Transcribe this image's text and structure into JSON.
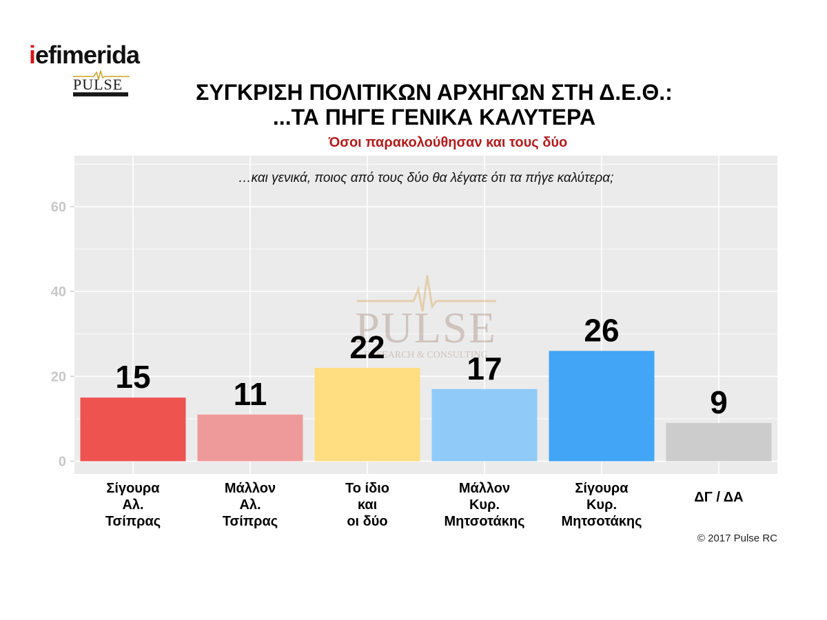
{
  "logos": {
    "iefimerida_i": "i",
    "iefimerida_rest": "efimerida",
    "pulse_text": "PULSE",
    "watermark_text": "PULSE",
    "watermark_sub": "RESEARCH & CONSULTING"
  },
  "title_line1": "ΣΥΓΚΡΙΣΗ ΠΟΛΙΤΙΚΩΝ ΑΡΧΗΓΩΝ ΣΤΗ Δ.Ε.Θ.:",
  "title_line2": "...ΤΑ ΠΗΓΕ ΓΕΝΙΚΑ ΚΑΛΥΤΕΡΑ",
  "subtitle": "Όσοι παρακολούθησαν και τους δύο",
  "question": "…και γενικά, ποιος από τους δύο θα λέγατε ότι τα πήγε καλύτερα;",
  "copyright": "© 2017 Pulse RC",
  "chart_data": {
    "type": "bar",
    "categories": [
      [
        "Σίγουρα",
        "Αλ.",
        "Τσίπρας"
      ],
      [
        "Μάλλον",
        "Αλ.",
        "Τσίπρας"
      ],
      [
        "Το ίδιο",
        "και",
        "οι δύο"
      ],
      [
        "Μάλλον",
        "Κυρ.",
        "Μητσοτάκης"
      ],
      [
        "Σίγουρα",
        "Κυρ.",
        "Μητσοτάκης"
      ],
      [
        "ΔΓ / ΔΑ"
      ]
    ],
    "values": [
      15,
      11,
      22,
      17,
      26,
      9
    ],
    "data_labels": [
      "15",
      "11",
      "22",
      "17",
      "26",
      "9"
    ],
    "colors": [
      "#ef5350",
      "#ef9a9a",
      "#ffdd80",
      "#90caf9",
      "#42a5f5",
      "#cccccc"
    ],
    "yticks": [
      0,
      20,
      40,
      60
    ],
    "ytick_labels": [
      "0",
      "20",
      "40",
      "60"
    ],
    "ylim": [
      -3,
      72
    ],
    "grid": true,
    "panel_background": "#ebebeb",
    "grid_color": "#ffffff",
    "legend": "none"
  }
}
